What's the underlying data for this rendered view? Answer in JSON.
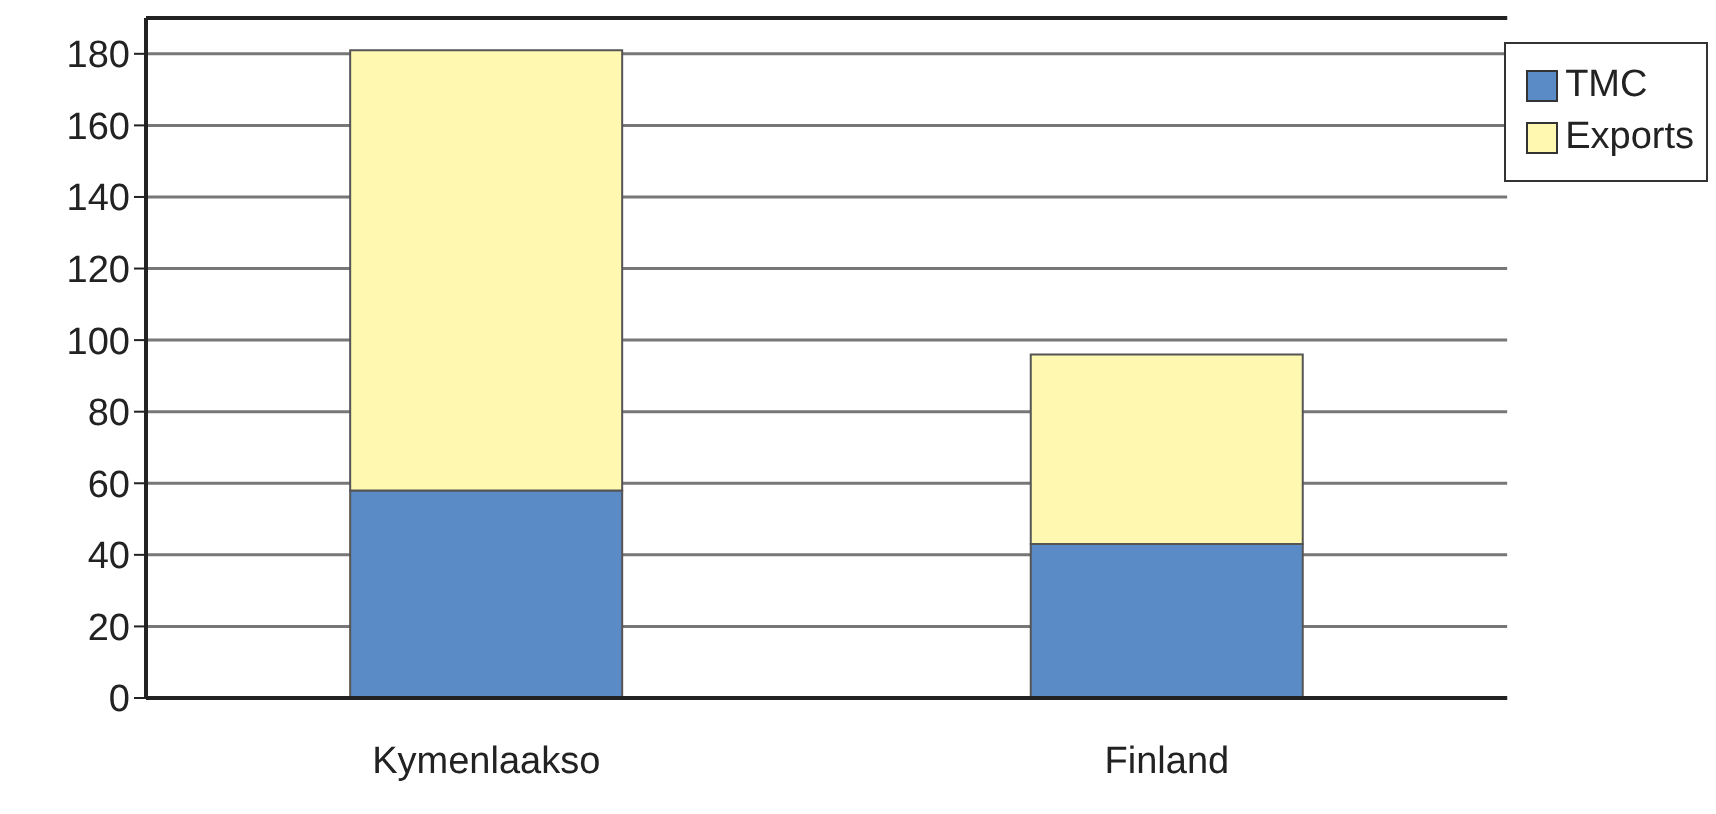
{
  "chart_data": {
    "type": "bar",
    "stacked": true,
    "categories": [
      "Kymenlaakso",
      "Finland"
    ],
    "series": [
      {
        "name": "TMC",
        "color": "#5b8bc7",
        "values": [
          58,
          43
        ]
      },
      {
        "name": "Exports",
        "color": "#fff8b0",
        "values": [
          123,
          53
        ]
      }
    ],
    "ylim": [
      0,
      190
    ],
    "yticks": [
      0,
      20,
      40,
      60,
      80,
      100,
      120,
      140,
      160,
      180
    ],
    "grid": "y",
    "legend": "top right"
  }
}
